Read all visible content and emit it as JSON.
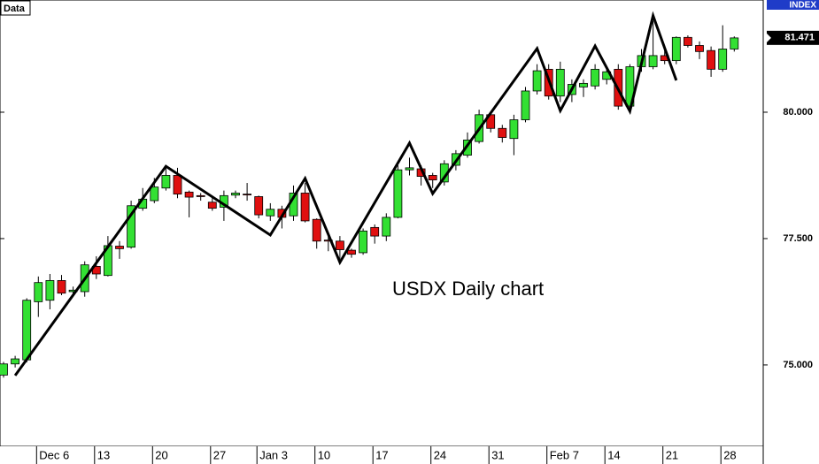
{
  "chart_data": {
    "type": "candlestick",
    "source_label": "Data",
    "index_label": "INDEX",
    "annotation": "USDX Daily chart",
    "categories": [
      null,
      null,
      null,
      "Dec 6",
      null,
      null,
      null,
      null,
      "13",
      null,
      null,
      null,
      null,
      "20",
      null,
      null,
      null,
      null,
      "27",
      null,
      null,
      null,
      "Jan 3",
      null,
      null,
      null,
      null,
      "10",
      null,
      null,
      null,
      null,
      "17",
      null,
      null,
      null,
      null,
      "24",
      null,
      null,
      null,
      null,
      "31",
      null,
      null,
      null,
      null,
      "Feb 7",
      null,
      null,
      null,
      null,
      "14",
      null,
      null,
      null,
      null,
      "21",
      null,
      null,
      null,
      null,
      "28",
      null
    ],
    "open": [
      74.8,
      75.02,
      75.1,
      76.25,
      76.28,
      76.67,
      76.45,
      76.45,
      76.95,
      76.77,
      77.35,
      77.33,
      78.1,
      78.25,
      78.5,
      78.75,
      78.42,
      78.35,
      78.22,
      78.12,
      78.36,
      78.38,
      78.33,
      77.95,
      78.08,
      77.95,
      78.4,
      77.88,
      77.47,
      77.45,
      77.27,
      77.22,
      77.72,
      77.55,
      77.92,
      78.86,
      78.88,
      78.75,
      78.62,
      78.95,
      79.15,
      79.42,
      79.95,
      79.68,
      79.48,
      79.85,
      80.42,
      80.85,
      80.32,
      80.35,
      80.5,
      80.52,
      80.65,
      80.85,
      80.12,
      80.9,
      80.9,
      81.12,
      81.02,
      81.48,
      81.32,
      81.22,
      80.85,
      81.25
    ],
    "high": [
      75.06,
      75.18,
      76.32,
      76.75,
      76.8,
      76.78,
      76.55,
      77.05,
      77.15,
      77.55,
      77.45,
      78.25,
      78.5,
      78.7,
      78.9,
      78.9,
      78.45,
      78.4,
      78.3,
      78.45,
      78.45,
      78.6,
      78.35,
      78.2,
      78.15,
      78.55,
      78.6,
      77.9,
      77.6,
      77.55,
      77.3,
      77.7,
      77.78,
      78.0,
      78.95,
      79.1,
      78.95,
      78.8,
      79.05,
      79.25,
      79.6,
      80.05,
      80.0,
      79.75,
      79.95,
      80.5,
      80.95,
      80.95,
      81.0,
      80.65,
      80.65,
      80.95,
      80.9,
      80.95,
      80.95,
      81.25,
      81.8,
      81.3,
      81.5,
      81.52,
      81.4,
      81.3,
      81.72,
      81.5
    ],
    "low": [
      74.75,
      74.95,
      75.05,
      75.95,
      76.1,
      76.38,
      76.35,
      76.35,
      76.7,
      76.75,
      77.1,
      77.3,
      78.05,
      78.2,
      78.45,
      78.3,
      77.92,
      78.25,
      78.05,
      77.85,
      78.3,
      78.25,
      77.9,
      77.85,
      77.7,
      77.85,
      77.82,
      77.3,
      77.25,
      77.1,
      77.12,
      77.18,
      77.4,
      77.45,
      77.9,
      78.75,
      78.55,
      78.5,
      78.55,
      78.85,
      79.1,
      79.38,
      79.6,
      79.4,
      79.15,
      79.8,
      80.35,
      80.25,
      80.2,
      80.2,
      80.3,
      80.45,
      80.55,
      80.05,
      80.0,
      80.8,
      80.85,
      80.95,
      80.95,
      81.28,
      81.05,
      80.7,
      80.8,
      81.2
    ],
    "close": [
      75.02,
      75.12,
      76.28,
      76.63,
      76.67,
      76.42,
      76.48,
      76.98,
      76.8,
      77.36,
      77.3,
      78.15,
      78.28,
      78.52,
      78.75,
      78.38,
      78.32,
      78.33,
      78.1,
      78.35,
      78.4,
      78.37,
      77.97,
      78.08,
      77.92,
      78.4,
      77.85,
      77.45,
      77.45,
      77.28,
      77.19,
      77.65,
      77.55,
      77.92,
      78.86,
      78.9,
      78.73,
      78.66,
      78.98,
      79.18,
      79.45,
      79.95,
      79.68,
      79.5,
      79.85,
      80.42,
      80.82,
      80.32,
      80.85,
      80.55,
      80.57,
      80.85,
      80.8,
      80.12,
      80.9,
      81.12,
      81.12,
      81.02,
      81.48,
      81.32,
      81.2,
      80.85,
      81.25,
      81.47
    ],
    "up_color": "#33e033",
    "down_color": "#e01010",
    "zigzag": {
      "x": [
        1,
        14,
        23,
        26,
        29,
        35,
        37,
        46,
        48,
        51,
        54,
        56,
        58
      ],
      "values": [
        74.79,
        78.93,
        77.57,
        78.69,
        77.03,
        79.39,
        78.39,
        81.26,
        80.03,
        81.31,
        80.02,
        81.91,
        80.63
      ],
      "color": "#000000"
    },
    "last_price": {
      "value": 81.471,
      "label": "81.471"
    },
    "ylim": [
      73.39,
      82.22
    ],
    "yticks": [
      {
        "value": 75,
        "label": "75.000"
      },
      {
        "value": 77.5,
        "label": "77.500"
      },
      {
        "value": 80,
        "label": "80.000"
      }
    ]
  }
}
